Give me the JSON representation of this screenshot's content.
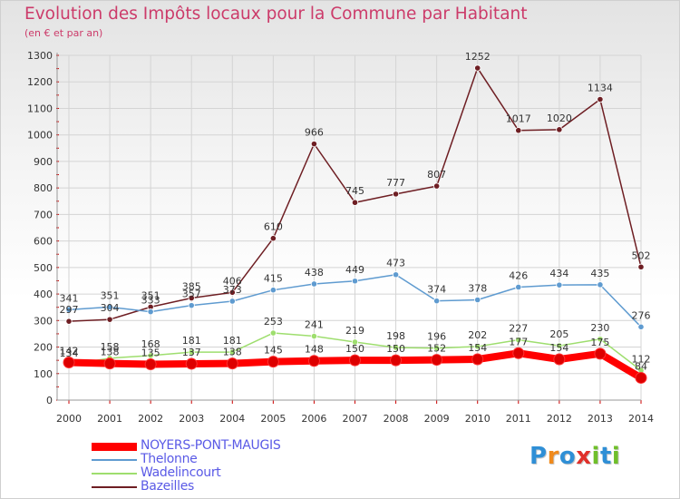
{
  "header": {
    "title": "Evolution des Impôts locaux pour la Commune par Habitant",
    "subtitle": "(en € et par an)"
  },
  "logo": {
    "text": "Proxiti",
    "letters": [
      {
        "ch": "P",
        "color": "#2f8fd6"
      },
      {
        "ch": "r",
        "color": "#f08a1c"
      },
      {
        "ch": "o",
        "color": "#2f8fd6"
      },
      {
        "ch": "x",
        "color": "#e0302a"
      },
      {
        "ch": "i",
        "color": "#6fbf2a"
      },
      {
        "ch": "t",
        "color": "#2f8fd6"
      },
      {
        "ch": "i",
        "color": "#6fbf2a"
      }
    ]
  },
  "chart_data": {
    "type": "line",
    "title": "Evolution des Impôts locaux pour la Commune par Habitant",
    "subtitle": "(en € et par an)",
    "xlabel": "",
    "ylabel": "",
    "x": [
      "2000",
      "2001",
      "2002",
      "2003",
      "2004",
      "2005",
      "2006",
      "2007",
      "2008",
      "2009",
      "2010",
      "2011",
      "2012",
      "2013",
      "2014"
    ],
    "ylim": [
      0,
      1300
    ],
    "yticks": [
      0,
      100,
      200,
      300,
      400,
      500,
      600,
      700,
      800,
      900,
      1000,
      1100,
      1200,
      1300
    ],
    "grid": true,
    "legend_position": "bottom-left",
    "series": [
      {
        "name": "NOYERS-PONT-MAUGIS",
        "color": "#ff0000",
        "marker_color": "#dd0000",
        "values": [
          142,
          138,
          135,
          137,
          138,
          145,
          148,
          150,
          150,
          152,
          154,
          177,
          154,
          175,
          84
        ],
        "labels": [
          "142",
          "138",
          "135",
          "137",
          "138",
          "145",
          "148",
          "150",
          "150",
          "152",
          "154",
          "177",
          "154",
          "175",
          "84"
        ]
      },
      {
        "name": "Thelonne",
        "color": "#5f9bd0",
        "values": [
          341,
          351,
          333,
          357,
          373,
          415,
          438,
          449,
          473,
          374,
          378,
          426,
          434,
          435,
          276
        ],
        "labels": [
          "341",
          "351",
          "333",
          "357",
          "373",
          "415",
          "438",
          "449",
          "473",
          "374",
          "378",
          "426",
          "434",
          "435",
          "276"
        ]
      },
      {
        "name": "Wadelincourt",
        "color": "#9ede6e",
        "values": [
          134,
          158,
          168,
          181,
          181,
          253,
          241,
          219,
          198,
          196,
          202,
          227,
          205,
          230,
          112
        ],
        "labels": [
          "134",
          "158",
          "168",
          "181",
          "181",
          "253",
          "241",
          "219",
          "198",
          "196",
          "202",
          "227",
          "205",
          "230",
          "112"
        ]
      },
      {
        "name": "Bazeilles",
        "color": "#6e1e23",
        "values": [
          297,
          304,
          351,
          385,
          406,
          610,
          966,
          745,
          777,
          807,
          1252,
          1017,
          1020,
          1134,
          502
        ],
        "labels": [
          "297",
          "304",
          "351",
          "385",
          "406",
          "610",
          "966",
          "745",
          "777",
          "807",
          "1252",
          "1017",
          "1020",
          "1134",
          "502"
        ]
      }
    ]
  }
}
